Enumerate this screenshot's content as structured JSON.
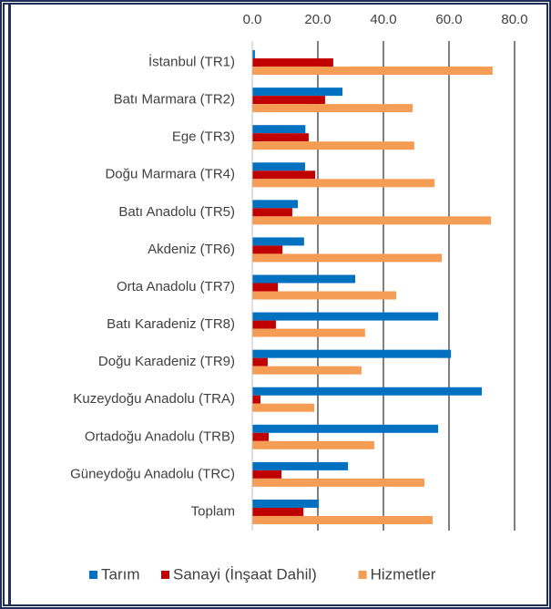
{
  "chart_data": {
    "type": "bar",
    "orientation": "horizontal",
    "categories": [
      "İstanbul (TR1)",
      "Batı Marmara (TR2)",
      "Ege (TR3)",
      "Doğu Marmara (TR4)",
      "Batı Anadolu (TR5)",
      "Akdeniz (TR6)",
      "Orta Anadolu (TR7)",
      "Batı Karadeniz (TR8)",
      "Doğu Karadeniz (TR9)",
      "Kuzeydoğu Anadolu (TRA)",
      "Ortadoğu Anadolu (TRB)",
      "Güneydoğu Anadolu (TRC)",
      "Toplam"
    ],
    "series": [
      {
        "name": "Tarım",
        "color": "#0070c0",
        "values": [
          0.8,
          27.5,
          16.2,
          16.1,
          13.9,
          15.8,
          31.4,
          56.7,
          60.6,
          70.0,
          56.7,
          29.2,
          20.3
        ]
      },
      {
        "name": "Sanayi (İnşaat Dahil)",
        "color": "#c00000",
        "values": [
          24.7,
          22.2,
          17.2,
          19.2,
          12.2,
          9.2,
          7.8,
          7.2,
          4.7,
          2.5,
          5.0,
          8.9,
          15.6
        ]
      },
      {
        "name": "Hizmetler",
        "color": "#f59d55",
        "values": [
          73.3,
          48.9,
          49.4,
          55.6,
          72.8,
          57.8,
          43.9,
          34.4,
          33.3,
          18.9,
          37.2,
          52.5,
          55.0
        ]
      }
    ],
    "xlim": [
      0,
      80
    ],
    "xticks": [
      {
        "value": 0,
        "label": "0.0"
      },
      {
        "value": 20,
        "label": "20.0"
      },
      {
        "value": 40,
        "label": "40.0"
      },
      {
        "value": 60,
        "label": "60.0"
      },
      {
        "value": 80,
        "label": "80.0"
      }
    ],
    "grid": true,
    "legend": "bottom"
  }
}
